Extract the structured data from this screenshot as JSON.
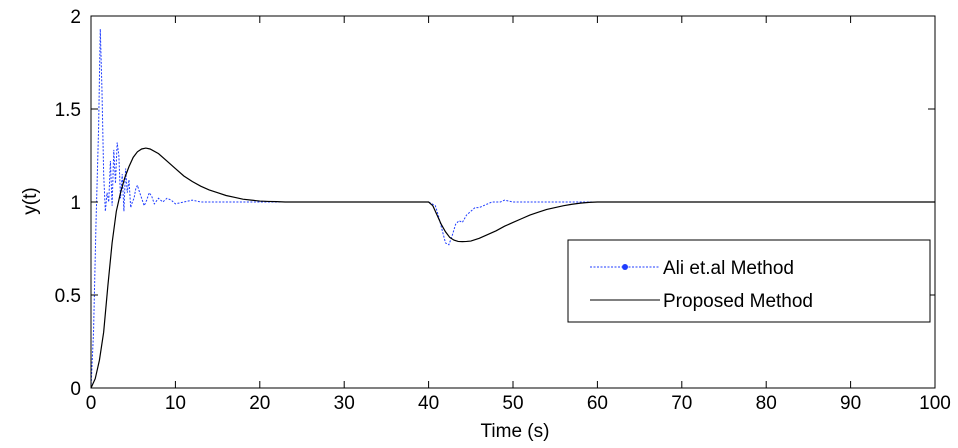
{
  "chart_data": {
    "type": "line",
    "title": "",
    "xlabel": "Time (s)",
    "ylabel": "y(t)",
    "xlim": [
      0,
      100
    ],
    "ylim": [
      0,
      2
    ],
    "xticks": [
      0,
      10,
      20,
      30,
      40,
      50,
      60,
      70,
      80,
      90,
      100
    ],
    "xtick_labels": [
      "0",
      "10",
      "20",
      "30",
      "40",
      "50",
      "60",
      "70",
      "80",
      "90",
      "100"
    ],
    "yticks": [
      0,
      0.5,
      1,
      1.5,
      2
    ],
    "ytick_labels": [
      "0",
      "0.5",
      "1",
      "1.5",
      "2"
    ],
    "grid": false,
    "legend_position": "center-right",
    "series": [
      {
        "name": "Ali et.al Method",
        "color": "#1f3dff",
        "marker": "dot",
        "x": [
          0,
          0.3,
          0.6,
          0.9,
          1.1,
          1.3,
          1.5,
          1.7,
          1.9,
          2.1,
          2.3,
          2.5,
          2.7,
          2.9,
          3.1,
          3.3,
          3.5,
          3.7,
          3.9,
          4.1,
          4.3,
          4.5,
          4.7,
          4.9,
          5.1,
          5.3,
          5.5,
          5.7,
          6.0,
          6.3,
          6.6,
          6.9,
          7.2,
          7.5,
          8.0,
          8.5,
          9.0,
          9.5,
          10,
          11,
          12,
          13,
          14,
          15,
          17,
          20,
          22,
          25,
          30,
          35,
          40,
          40.8,
          41.2,
          41.6,
          42.0,
          42.4,
          42.8,
          43.2,
          43.6,
          44.0,
          44.5,
          45.0,
          45.5,
          46.0,
          46.5,
          47.0,
          47.5,
          48.0,
          48.5,
          49.0,
          50,
          55,
          60,
          70,
          80,
          90,
          100
        ],
        "y": [
          0,
          0.3,
          0.9,
          1.4,
          1.93,
          1.6,
          1.15,
          0.95,
          1.05,
          1.0,
          1.22,
          0.98,
          1.28,
          1.1,
          1.32,
          1.25,
          1.02,
          1.15,
          0.95,
          1.18,
          1.05,
          1.12,
          0.97,
          1.0,
          1.02,
          1.07,
          1.09,
          1.06,
          1.02,
          0.98,
          1.01,
          1.05,
          1.03,
          0.99,
          1.02,
          1.0,
          1.02,
          1.01,
          0.99,
          1.0,
          1.01,
          1.0,
          1.0,
          1.0,
          1.0,
          1.0,
          1.0,
          1.0,
          1.0,
          1.0,
          1.0,
          0.98,
          0.92,
          0.85,
          0.78,
          0.77,
          0.82,
          0.88,
          0.9,
          0.89,
          0.93,
          0.95,
          0.97,
          0.97,
          0.98,
          0.99,
          1.0,
          1.0,
          1.0,
          1.01,
          1.0,
          1.0,
          1.0,
          1.0,
          1.0,
          1.0,
          1.0
        ]
      },
      {
        "name": "Proposed Method",
        "color": "#000000",
        "marker": "none",
        "x": [
          0,
          0.5,
          1.0,
          1.5,
          2.0,
          2.5,
          3.0,
          3.5,
          4.0,
          4.5,
          5.0,
          5.5,
          6.0,
          6.5,
          7.0,
          8.0,
          9.0,
          10,
          11,
          12,
          13,
          14,
          15,
          16,
          17,
          18,
          19,
          20,
          21,
          22,
          23,
          25,
          30,
          35,
          40,
          40.5,
          41,
          41.5,
          42,
          42.5,
          43,
          43.5,
          44,
          44.5,
          45,
          46,
          47,
          48,
          49,
          50,
          51,
          52,
          53,
          54,
          55,
          56,
          57,
          58,
          59,
          60,
          65,
          70,
          80,
          90,
          100
        ],
        "y": [
          0,
          0.05,
          0.15,
          0.3,
          0.55,
          0.78,
          0.95,
          1.05,
          1.13,
          1.19,
          1.24,
          1.27,
          1.285,
          1.29,
          1.285,
          1.26,
          1.22,
          1.18,
          1.14,
          1.11,
          1.085,
          1.065,
          1.05,
          1.035,
          1.025,
          1.015,
          1.01,
          1.005,
          1.003,
          1.002,
          1.0,
          1.0,
          1.0,
          1.0,
          1.0,
          0.98,
          0.93,
          0.88,
          0.84,
          0.81,
          0.795,
          0.788,
          0.787,
          0.788,
          0.79,
          0.805,
          0.825,
          0.845,
          0.87,
          0.89,
          0.91,
          0.93,
          0.945,
          0.96,
          0.97,
          0.98,
          0.988,
          0.994,
          0.998,
          1.0,
          1.0,
          1.0,
          1.0,
          1.0,
          1.0
        ]
      }
    ]
  }
}
